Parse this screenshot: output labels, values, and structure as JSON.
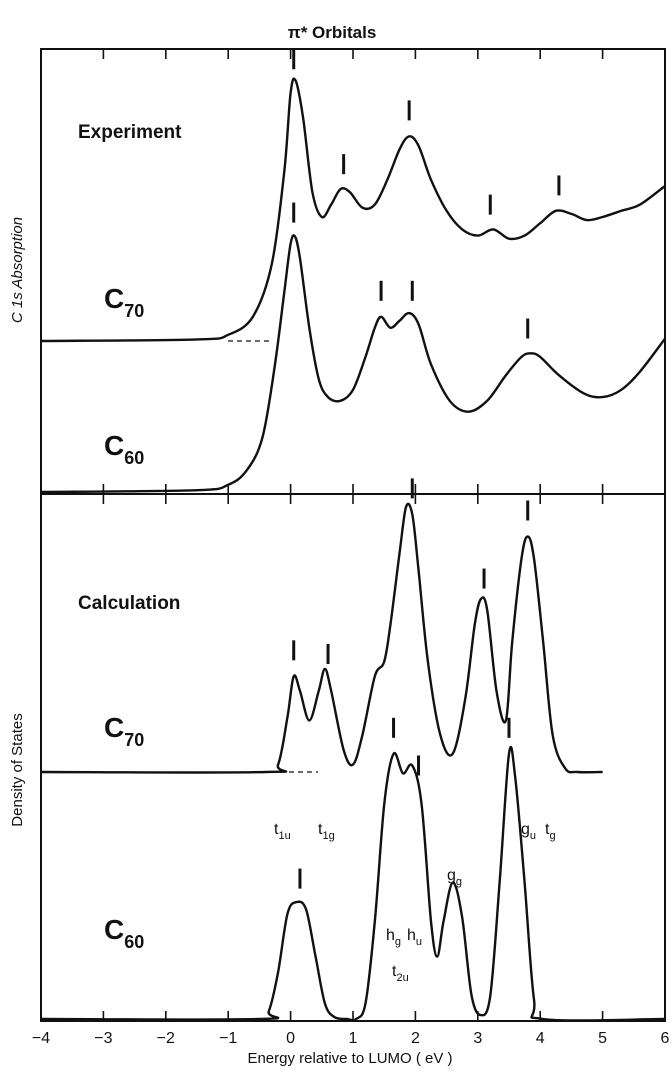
{
  "chart_data": {
    "type": "line",
    "title": "π* Orbitals",
    "xlabel": "Energy  relative to LUMO  ( eV )",
    "xlim": [
      -4,
      6
    ],
    "x_ticks": [
      -4,
      -3,
      -2,
      -1,
      0,
      1,
      2,
      3,
      4,
      5,
      6
    ],
    "grid": false,
    "panels": [
      {
        "id": "experiment",
        "panel_label": "Experiment",
        "ylabel": "C 1s   Absorption",
        "series": [
          {
            "name": "C70",
            "sub": "70",
            "points": [
              [
                -4,
                0
              ],
              [
                -1.5,
                0.005
              ],
              [
                -1,
                0.02
              ],
              [
                -0.6,
                0.08
              ],
              [
                -0.3,
                0.25
              ],
              [
                -0.1,
                0.55
              ],
              [
                0,
                0.8
              ],
              [
                0.08,
                0.84
              ],
              [
                0.2,
                0.72
              ],
              [
                0.35,
                0.48
              ],
              [
                0.5,
                0.4
              ],
              [
                0.65,
                0.44
              ],
              [
                0.8,
                0.49
              ],
              [
                0.95,
                0.48
              ],
              [
                1.15,
                0.43
              ],
              [
                1.35,
                0.44
              ],
              [
                1.55,
                0.52
              ],
              [
                1.75,
                0.62
              ],
              [
                1.9,
                0.66
              ],
              [
                2.05,
                0.63
              ],
              [
                2.25,
                0.52
              ],
              [
                2.5,
                0.42
              ],
              [
                2.75,
                0.36
              ],
              [
                3.0,
                0.34
              ],
              [
                3.25,
                0.36
              ],
              [
                3.5,
                0.33
              ],
              [
                3.75,
                0.34
              ],
              [
                4.0,
                0.38
              ],
              [
                4.25,
                0.42
              ],
              [
                4.5,
                0.41
              ],
              [
                4.75,
                0.39
              ],
              [
                5.0,
                0.4
              ],
              [
                5.3,
                0.42
              ],
              [
                5.6,
                0.44
              ],
              [
                6.0,
                0.5
              ]
            ],
            "peak_markers": [
              0.05,
              0.85,
              1.9,
              3.2,
              4.3
            ]
          },
          {
            "name": "C60",
            "sub": "60",
            "points": [
              [
                -4,
                0
              ],
              [
                -1.5,
                0.005
              ],
              [
                -1,
                0.02
              ],
              [
                -0.7,
                0.06
              ],
              [
                -0.45,
                0.15
              ],
              [
                -0.25,
                0.35
              ],
              [
                -0.1,
                0.55
              ],
              [
                0,
                0.68
              ],
              [
                0.07,
                0.7
              ],
              [
                0.15,
                0.64
              ],
              [
                0.3,
                0.45
              ],
              [
                0.45,
                0.31
              ],
              [
                0.6,
                0.26
              ],
              [
                0.8,
                0.25
              ],
              [
                1.0,
                0.28
              ],
              [
                1.2,
                0.37
              ],
              [
                1.35,
                0.45
              ],
              [
                1.45,
                0.48
              ],
              [
                1.6,
                0.45
              ],
              [
                1.75,
                0.47
              ],
              [
                1.9,
                0.49
              ],
              [
                2.05,
                0.46
              ],
              [
                2.25,
                0.35
              ],
              [
                2.55,
                0.25
              ],
              [
                2.85,
                0.22
              ],
              [
                3.15,
                0.25
              ],
              [
                3.45,
                0.32
              ],
              [
                3.7,
                0.37
              ],
              [
                3.85,
                0.38
              ],
              [
                4.0,
                0.37
              ],
              [
                4.3,
                0.32
              ],
              [
                4.7,
                0.27
              ],
              [
                5.0,
                0.26
              ],
              [
                5.3,
                0.28
              ],
              [
                5.6,
                0.33
              ],
              [
                6.0,
                0.42
              ]
            ],
            "peak_markers": [
              0.05,
              1.45,
              1.95,
              3.8
            ]
          }
        ]
      },
      {
        "id": "calculation",
        "panel_label": "Calculation",
        "ylabel": "Density   of   States",
        "series": [
          {
            "name": "C70",
            "sub": "70",
            "points": [
              [
                -4,
                0
              ],
              [
                -0.4,
                0
              ],
              [
                -0.2,
                0.02
              ],
              [
                -0.05,
                0.15
              ],
              [
                0.05,
                0.26
              ],
              [
                0.15,
                0.22
              ],
              [
                0.3,
                0.14
              ],
              [
                0.45,
                0.22
              ],
              [
                0.55,
                0.28
              ],
              [
                0.65,
                0.22
              ],
              [
                0.85,
                0.06
              ],
              [
                1.0,
                0.02
              ],
              [
                1.15,
                0.1
              ],
              [
                1.35,
                0.26
              ],
              [
                1.5,
                0.3
              ],
              [
                1.6,
                0.4
              ],
              [
                1.75,
                0.6
              ],
              [
                1.85,
                0.72
              ],
              [
                1.95,
                0.7
              ],
              [
                2.05,
                0.55
              ],
              [
                2.2,
                0.3
              ],
              [
                2.4,
                0.1
              ],
              [
                2.6,
                0.05
              ],
              [
                2.8,
                0.2
              ],
              [
                2.95,
                0.4
              ],
              [
                3.05,
                0.47
              ],
              [
                3.15,
                0.44
              ],
              [
                3.3,
                0.22
              ],
              [
                3.45,
                0.14
              ],
              [
                3.55,
                0.35
              ],
              [
                3.7,
                0.58
              ],
              [
                3.8,
                0.64
              ],
              [
                3.9,
                0.58
              ],
              [
                4.05,
                0.35
              ],
              [
                4.2,
                0.1
              ],
              [
                4.4,
                0.01
              ],
              [
                4.6,
                0
              ],
              [
                5,
                0
              ]
            ],
            "peak_markers": [
              0.05,
              0.6,
              1.95,
              3.1,
              3.8
            ]
          },
          {
            "name": "C60",
            "sub": "60",
            "points": [
              [
                -4,
                0
              ],
              [
                -0.5,
                0
              ],
              [
                -0.35,
                0.02
              ],
              [
                -0.2,
                0.12
              ],
              [
                -0.05,
                0.27
              ],
              [
                0.1,
                0.3
              ],
              [
                0.25,
                0.28
              ],
              [
                0.4,
                0.16
              ],
              [
                0.55,
                0.04
              ],
              [
                0.7,
                0.005
              ],
              [
                0.9,
                0
              ],
              [
                1.05,
                0
              ],
              [
                1.2,
                0.04
              ],
              [
                1.35,
                0.25
              ],
              [
                1.5,
                0.55
              ],
              [
                1.65,
                0.68
              ],
              [
                1.8,
                0.63
              ],
              [
                1.95,
                0.65
              ],
              [
                2.1,
                0.55
              ],
              [
                2.25,
                0.25
              ],
              [
                2.35,
                0.16
              ],
              [
                2.45,
                0.25
              ],
              [
                2.6,
                0.35
              ],
              [
                2.75,
                0.26
              ],
              [
                2.9,
                0.06
              ],
              [
                3.05,
                0.01
              ],
              [
                3.2,
                0.06
              ],
              [
                3.35,
                0.35
              ],
              [
                3.5,
                0.68
              ],
              [
                3.6,
                0.62
              ],
              [
                3.75,
                0.35
              ],
              [
                3.9,
                0.05
              ],
              [
                4.05,
                0
              ],
              [
                6,
                0
              ]
            ],
            "peak_markers": [
              0.15,
              1.65,
              2.05,
              3.5
            ]
          }
        ]
      }
    ],
    "annotations": [
      "t1u",
      "t1g",
      "hg",
      "hu",
      "t2u",
      "gg",
      "gu",
      "tg"
    ]
  },
  "labels": {
    "c_main": "C",
    "sub_70": "70",
    "sub_60": "60",
    "ann_t1u": "t",
    "ann_t1u_sub": "1u",
    "ann_t1g": "t",
    "ann_t1g_sub": "1g",
    "ann_hg": "h",
    "ann_hg_sub": "g",
    "ann_hu": "h",
    "ann_hu_sub": "u",
    "ann_t2u": "t",
    "ann_t2u_sub": "2u",
    "ann_gg": "g",
    "ann_gg_sub": "g",
    "ann_gu": "g",
    "ann_gu_sub": "u",
    "ann_tg": "t",
    "ann_tg_sub": "g"
  },
  "colors": {
    "ink": "#111111",
    "background": "#ffffff"
  }
}
